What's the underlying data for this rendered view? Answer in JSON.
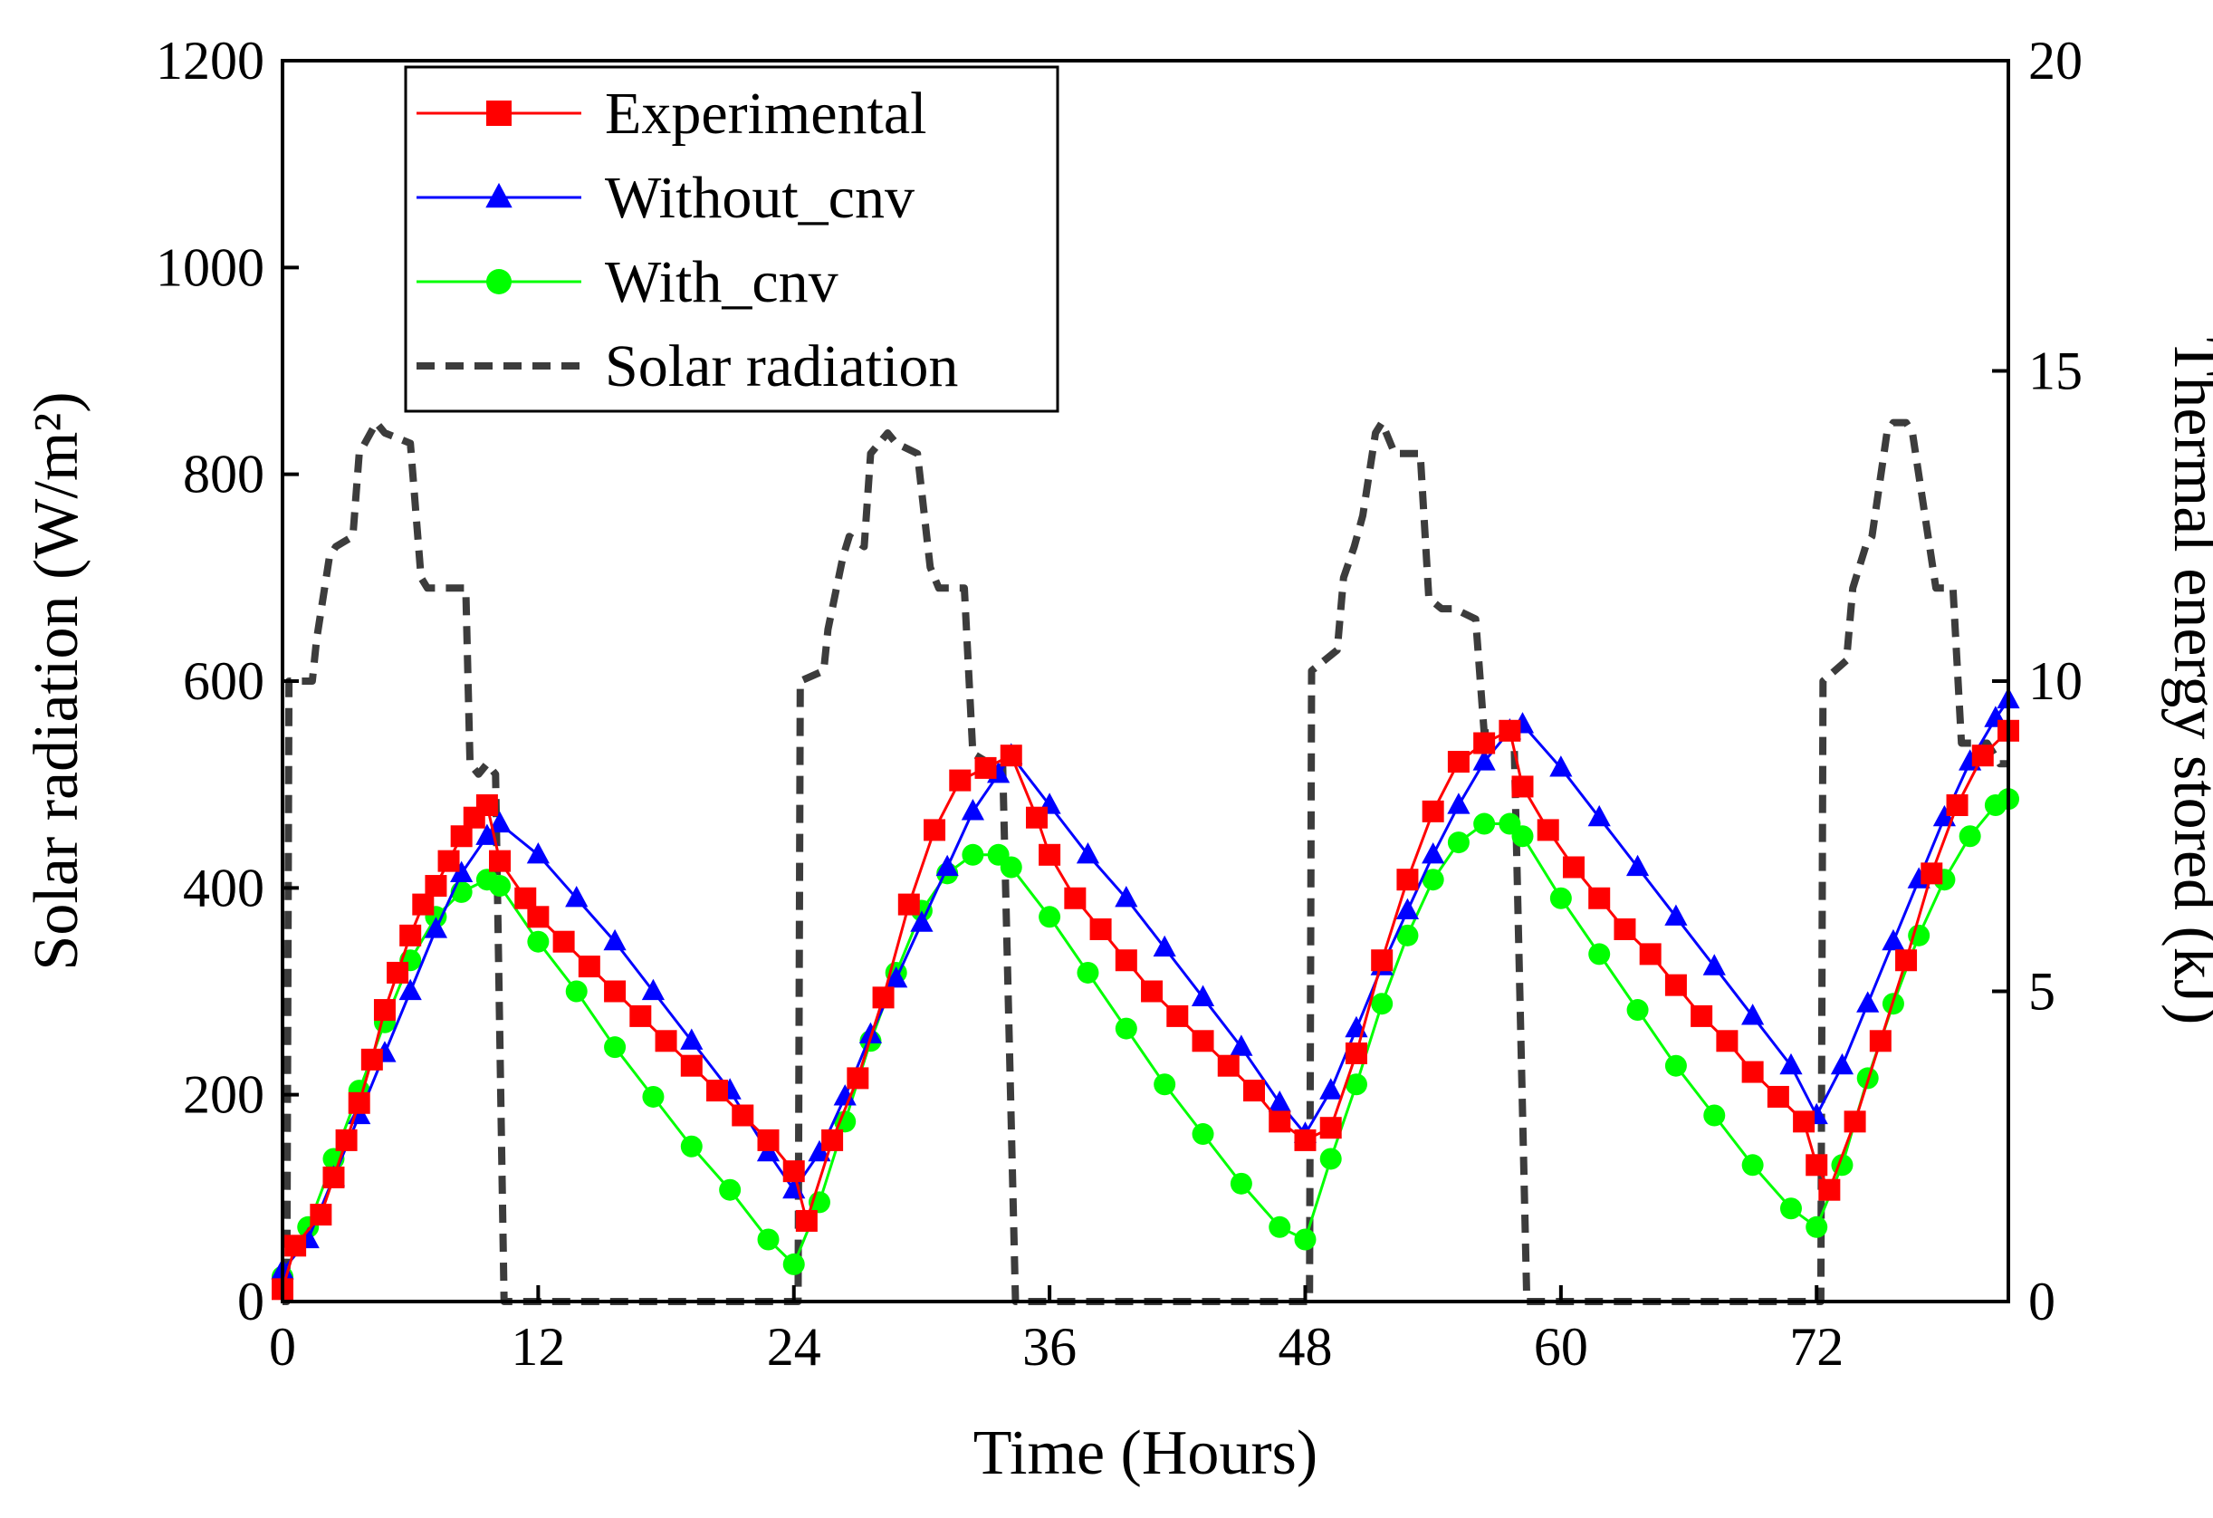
{
  "chart_data": {
    "type": "line",
    "title": "",
    "xlabel": "Time (Hours)",
    "ylabel_left": "Solar radiation (W/m²)",
    "ylabel_right": "Thermal energy stored (kJ)",
    "xlim": [
      0,
      81
    ],
    "ylim_left": [
      0,
      1200
    ],
    "ylim_right": [
      0,
      20
    ],
    "x_ticks": [
      "0",
      "12",
      "24",
      "36",
      "48",
      "60",
      "72"
    ],
    "y_left_ticks": [
      "0",
      "200",
      "400",
      "600",
      "800",
      "1000",
      "1200"
    ],
    "y_right_ticks": [
      "0",
      "5",
      "10",
      "15",
      "20"
    ],
    "grid": false,
    "legend_position": "top-left",
    "legend": [
      "Experimental",
      "Without_cnv",
      "With_cnv",
      "Solar radiation"
    ],
    "series": [
      {
        "name": "Experimental",
        "axis": "right",
        "color": "#ff0000",
        "marker": "square",
        "x": [
          0,
          0.6,
          1.8,
          2.4,
          3.0,
          3.6,
          4.2,
          4.8,
          5.4,
          6.0,
          6.6,
          7.2,
          7.8,
          8.4,
          9.0,
          9.6,
          10.2,
          11.4,
          12.0,
          13.2,
          14.4,
          15.6,
          16.8,
          18.0,
          19.2,
          20.4,
          21.6,
          22.8,
          24.0,
          24.6,
          25.8,
          27.0,
          28.2,
          29.4,
          30.6,
          31.8,
          33.0,
          34.2,
          35.4,
          36.0,
          37.2,
          38.4,
          39.6,
          40.8,
          42.0,
          43.2,
          44.4,
          45.6,
          46.8,
          48.0,
          49.2,
          50.4,
          51.6,
          52.8,
          54.0,
          55.2,
          56.4,
          57.6,
          58.2,
          59.4,
          60.6,
          61.8,
          63.0,
          64.2,
          65.4,
          66.6,
          67.8,
          69.0,
          70.2,
          71.4,
          72.0,
          72.6,
          73.8,
          75.0,
          76.2,
          77.4,
          78.6,
          79.8,
          81.0
        ],
        "y": [
          0.2,
          0.9,
          1.4,
          2.0,
          2.6,
          3.2,
          3.9,
          4.7,
          5.3,
          5.9,
          6.4,
          6.7,
          7.1,
          7.5,
          7.8,
          8.0,
          7.1,
          6.5,
          6.2,
          5.8,
          5.4,
          5.0,
          4.6,
          4.2,
          3.8,
          3.4,
          3.0,
          2.6,
          2.1,
          1.3,
          2.6,
          3.6,
          4.9,
          6.4,
          7.6,
          8.4,
          8.6,
          8.8,
          7.8,
          7.2,
          6.5,
          6.0,
          5.5,
          5.0,
          4.6,
          4.2,
          3.8,
          3.4,
          2.9,
          2.6,
          2.8,
          4.0,
          5.5,
          6.8,
          7.9,
          8.7,
          9.0,
          9.2,
          8.3,
          7.6,
          7.0,
          6.5,
          6.0,
          5.6,
          5.1,
          4.6,
          4.2,
          3.7,
          3.3,
          2.9,
          2.2,
          1.8,
          2.9,
          4.2,
          5.5,
          6.9,
          8.0,
          8.8,
          9.2
        ]
      },
      {
        "name": "Without_cnv",
        "axis": "right",
        "color": "#0000ff",
        "marker": "triangle",
        "x": [
          0,
          1.2,
          2.4,
          3.6,
          4.8,
          6.0,
          7.2,
          8.4,
          9.6,
          10.2,
          12.0,
          13.8,
          15.6,
          17.4,
          19.2,
          21.0,
          22.8,
          24.0,
          25.2,
          26.4,
          27.6,
          28.8,
          30.0,
          31.2,
          32.4,
          33.6,
          34.2,
          36.0,
          37.8,
          39.6,
          41.4,
          43.2,
          45.0,
          46.8,
          48.0,
          49.2,
          50.4,
          51.6,
          52.8,
          54.0,
          55.2,
          56.4,
          57.6,
          58.2,
          60.0,
          61.8,
          63.6,
          65.4,
          67.2,
          69.0,
          70.8,
          72.0,
          73.2,
          74.4,
          75.6,
          76.8,
          78.0,
          79.2,
          80.4,
          81.0
        ],
        "y": [
          0.5,
          1.0,
          2.0,
          3.0,
          4.0,
          5.0,
          6.0,
          6.9,
          7.5,
          7.7,
          7.2,
          6.5,
          5.8,
          5.0,
          4.2,
          3.4,
          2.4,
          1.8,
          2.4,
          3.3,
          4.3,
          5.2,
          6.1,
          7.0,
          7.9,
          8.5,
          8.8,
          8.0,
          7.2,
          6.5,
          5.7,
          4.9,
          4.1,
          3.2,
          2.7,
          3.4,
          4.4,
          5.4,
          6.3,
          7.2,
          8.0,
          8.7,
          9.2,
          9.3,
          8.6,
          7.8,
          7.0,
          6.2,
          5.4,
          4.6,
          3.8,
          3.0,
          3.8,
          4.8,
          5.8,
          6.8,
          7.8,
          8.7,
          9.4,
          9.7
        ]
      },
      {
        "name": "With_cnv",
        "axis": "right",
        "color": "#00ff00",
        "marker": "circle",
        "x": [
          0,
          1.2,
          2.4,
          3.6,
          4.8,
          6.0,
          7.2,
          8.4,
          9.6,
          10.2,
          12.0,
          13.8,
          15.6,
          17.4,
          19.2,
          21.0,
          22.8,
          24.0,
          25.2,
          26.4,
          27.6,
          28.8,
          30.0,
          31.2,
          32.4,
          33.6,
          34.2,
          36.0,
          37.8,
          39.6,
          41.4,
          43.2,
          45.0,
          46.8,
          48.0,
          49.2,
          50.4,
          51.6,
          52.8,
          54.0,
          55.2,
          56.4,
          57.6,
          58.2,
          60.0,
          61.8,
          63.6,
          65.4,
          67.2,
          69.0,
          70.8,
          72.0,
          73.2,
          74.4,
          75.6,
          76.8,
          78.0,
          79.2,
          80.4,
          81.0
        ],
        "y": [
          0.4,
          1.2,
          2.3,
          3.4,
          4.5,
          5.5,
          6.2,
          6.6,
          6.8,
          6.7,
          5.8,
          5.0,
          4.1,
          3.3,
          2.5,
          1.8,
          1.0,
          0.6,
          1.6,
          2.9,
          4.2,
          5.3,
          6.3,
          6.9,
          7.2,
          7.2,
          7.0,
          6.2,
          5.3,
          4.4,
          3.5,
          2.7,
          1.9,
          1.2,
          1.0,
          2.3,
          3.5,
          4.8,
          5.9,
          6.8,
          7.4,
          7.7,
          7.7,
          7.5,
          6.5,
          5.6,
          4.7,
          3.8,
          3.0,
          2.2,
          1.5,
          1.2,
          2.2,
          3.6,
          4.8,
          5.9,
          6.8,
          7.5,
          8.0,
          8.1
        ]
      },
      {
        "name": "Solar radiation",
        "axis": "left",
        "color": "#3c3c3c",
        "style": "dashed",
        "x": [
          0,
          0.2,
          0.3,
          1.4,
          1.6,
          2.2,
          2.5,
          3.3,
          3.6,
          4.4,
          4.8,
          6.0,
          6.5,
          6.8,
          7.2,
          8.6,
          8.8,
          9.2,
          9.6,
          10.0,
          10.4,
          24.0,
          24.2,
          24.3,
          25.4,
          25.6,
          26.3,
          26.6,
          27.3,
          27.6,
          28.4,
          28.8,
          29.8,
          30.4,
          30.8,
          31.2,
          32.0,
          32.4,
          33.2,
          33.8,
          34.4,
          48.0,
          48.2,
          48.3,
          49.5,
          49.8,
          50.3,
          50.7,
          51.3,
          51.6,
          52.2,
          52.6,
          53.4,
          53.8,
          54.4,
          55.0,
          56.0,
          56.4,
          57.4,
          57.8,
          58.4,
          72.0,
          72.2,
          72.3,
          73.4,
          73.7,
          74.3,
          74.6,
          75.3,
          75.6,
          76.2,
          76.5,
          77.6,
          78.0,
          78.4,
          78.8,
          79.6,
          80.0,
          80.6,
          81.0
        ],
        "y": [
          0,
          0,
          600,
          600,
          640,
          720,
          730,
          740,
          820,
          850,
          840,
          830,
          700,
          690,
          690,
          690,
          520,
          510,
          520,
          510,
          0,
          0,
          0,
          600,
          610,
          650,
          720,
          740,
          730,
          820,
          840,
          830,
          820,
          710,
          690,
          690,
          690,
          530,
          520,
          520,
          0,
          0,
          0,
          610,
          630,
          700,
          730,
          760,
          840,
          850,
          820,
          820,
          820,
          680,
          670,
          670,
          660,
          550,
          550,
          545,
          0,
          0,
          0,
          600,
          620,
          690,
          730,
          740,
          840,
          850,
          850,
          840,
          690,
          690,
          690,
          540,
          540,
          540,
          520,
          520
        ]
      }
    ]
  }
}
